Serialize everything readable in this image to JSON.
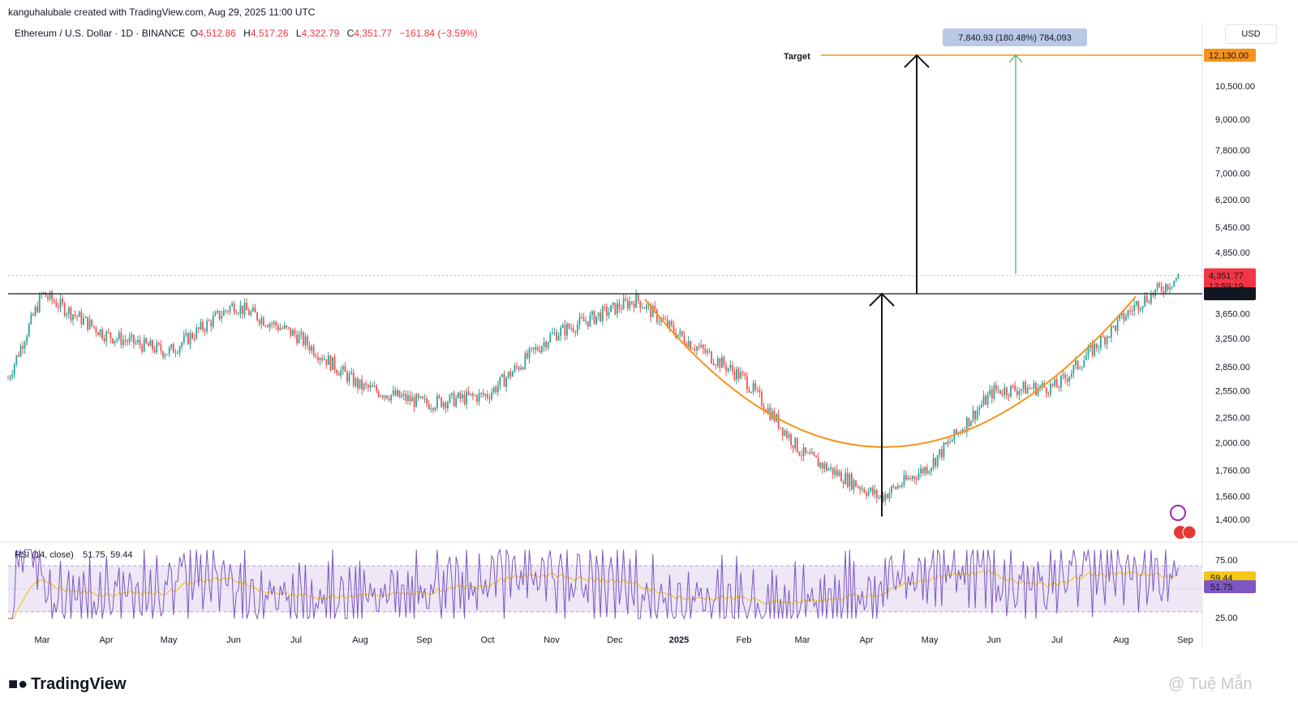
{
  "header": {
    "caption": "kanguhalubale created with TradingView.com, Aug 29, 2025 11:00 UTC",
    "symbol": "Ethereum / U.S. Dollar · 1D · BINANCE",
    "ohlc": [
      {
        "key": "O",
        "value": "4,512.86"
      },
      {
        "key": "H",
        "value": "4,517.26"
      },
      {
        "key": "L",
        "value": "4,322.79"
      },
      {
        "key": "C",
        "value": "4,351.77"
      }
    ],
    "change": "−161.84 (−3.59%)",
    "currency": "USD"
  },
  "footer": {
    "brand": "TradingView",
    "watermark": "@ Tuệ Mẫn"
  },
  "colors": {
    "up": "#26a69a",
    "down": "#ef5350",
    "cup": "#f7931a",
    "target": "#f7931a",
    "resistance": "#131722",
    "price_tag": "#f23645",
    "rsi": "#7e57c2",
    "rsi_ma": "#f5c518",
    "rsi_band": "#ede7f6",
    "measure_green": "#4caf50"
  },
  "chart_data": [
    {
      "type": "candlestick",
      "title": "Ethereum / U.S. Dollar · 1D · BINANCE",
      "y_scale": "log",
      "ylim": [
        1300,
        12700
      ],
      "x_ticks": [
        "Mar",
        "Apr",
        "May",
        "Jun",
        "Jul",
        "Aug",
        "Sep",
        "Oct",
        "Nov",
        "Dec",
        "2025",
        "Feb",
        "Mar",
        "Apr",
        "May",
        "Jun",
        "Jul",
        "Aug",
        "Sep"
      ],
      "y_ticks": [
        "10,500.00",
        "9,000.00",
        "7,800.00",
        "7,000.00",
        "6,200.00",
        "5,450.00",
        "4,850.00",
        "3,650.00",
        "3,250.00",
        "2,850.00",
        "2,550.00",
        "2,250.00",
        "2,000.00",
        "1,760.00",
        "1,560.00",
        "1,400.00"
      ],
      "price_path_approx": {
        "x": [
          "Feb 2024",
          "Mar 2024",
          "Apr 2024",
          "May 2024",
          "Jun 2024",
          "Jul 2024",
          "Aug 2024",
          "Sep 2024",
          "Oct 2024",
          "Nov 2024",
          "Dec 2024",
          "Jan 2025",
          "Feb 2025",
          "Mar 2025",
          "Apr 2025",
          "May 2025",
          "Jun 2025",
          "Jul 2025",
          "Aug 2025",
          "Aug 29 2025"
        ],
        "close": [
          2700,
          4000,
          3300,
          3050,
          3800,
          3300,
          2600,
          2400,
          2500,
          3300,
          3900,
          3300,
          2700,
          1900,
          1550,
          1800,
          2550,
          2600,
          3800,
          4351.77
        ]
      },
      "annotations": {
        "target_label": "Target",
        "target_price": "12,130.00",
        "resistance_price": "4,000.00",
        "last_price": "4,351.77",
        "countdown": "12:59:19",
        "measure_label": "7,840.93 (180.48%) 784,093",
        "cup_shape": "rounded bottom from Dec 2024 to Aug 2025"
      }
    },
    {
      "type": "line",
      "title": "RSI (14, close)",
      "series": [
        {
          "name": "RSI",
          "last": "51.75"
        },
        {
          "name": "RSI-based MA",
          "last": "59.44"
        }
      ],
      "ylim": [
        20,
        85
      ],
      "y_ticks": [
        "75.00",
        "25.00"
      ]
    }
  ]
}
